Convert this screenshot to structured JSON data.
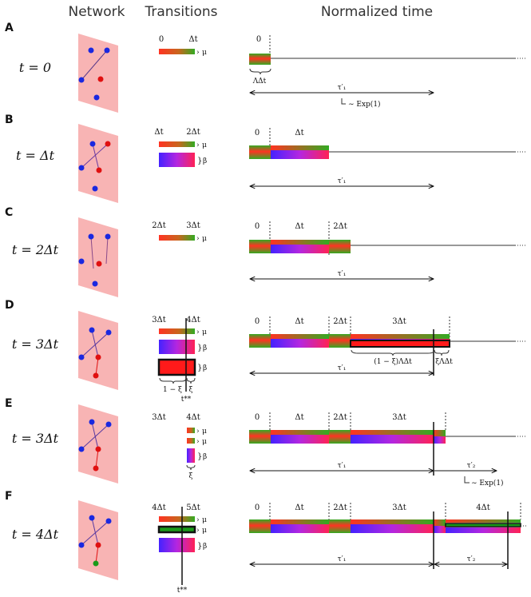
{
  "headers": {
    "network": "Network",
    "transitions": "Transitions",
    "time": "Normalized time"
  },
  "colors": {
    "panel": "#f8b4b4",
    "node_blue": "#1a28e0",
    "node_red": "#e01010",
    "node_green": "#1a9a1a",
    "mu_start": "#ff3322",
    "mu_end": "#33aa22",
    "beta_start": "#4422ff",
    "beta_end": "#ff2255"
  },
  "glyphs": {
    "mu": "μ",
    "beta": "β",
    "arrow_right": "›",
    "brace": "}"
  },
  "rows": [
    {
      "label": "A",
      "time": "t = 0",
      "trans_ticks": [
        "0",
        "Δt"
      ],
      "time_ticks": [
        "0"
      ],
      "annotations": {
        "lambda": "ΛΔt",
        "tau": "τ′₁",
        "exp": "∼ Exp(1)"
      }
    },
    {
      "label": "B",
      "time": "t = Δt",
      "trans_ticks": [
        "Δt",
        "2Δt"
      ],
      "time_ticks": [
        "0",
        "Δt"
      ],
      "annotations": {
        "tau": "τ′₁"
      }
    },
    {
      "label": "C",
      "time": "t = 2Δt",
      "trans_ticks": [
        "2Δt",
        "3Δt"
      ],
      "time_ticks": [
        "0",
        "Δt",
        "2Δt"
      ],
      "annotations": {
        "tau": "τ′₁"
      }
    },
    {
      "label": "D",
      "time": "t = 3Δt",
      "trans_ticks": [
        "3Δt",
        "4Δt"
      ],
      "time_ticks": [
        "0",
        "Δt",
        "2Δt",
        "3Δt"
      ],
      "annotations": {
        "xi_left": "1 − ξ",
        "xi": "ξ",
        "tstar": "t**",
        "frac_left": "(1 − ξ)ΛΔt",
        "frac_right": "ξΛΔt",
        "tau": "τ′₁"
      }
    },
    {
      "label": "E",
      "time": "t = 3Δt",
      "trans_ticks": [
        "3Δt",
        "4Δt"
      ],
      "time_ticks": [
        "0",
        "Δt",
        "2Δt",
        "3Δt"
      ],
      "annotations": {
        "xi": "ξ",
        "tau1": "τ′₁",
        "tau2": "τ′₂",
        "exp": "∼ Exp(1)"
      }
    },
    {
      "label": "F",
      "time": "t = 4Δt",
      "trans_ticks": [
        "4Δt",
        "5Δt"
      ],
      "time_ticks": [
        "0",
        "Δt",
        "2Δt",
        "3Δt",
        "4Δt"
      ],
      "annotations": {
        "tstar": "t**",
        "tau1": "τ′₁",
        "tau2": "τ′₂"
      }
    }
  ]
}
